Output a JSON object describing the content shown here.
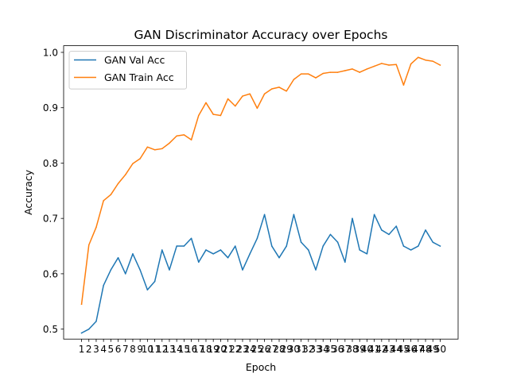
{
  "chart_data": {
    "type": "line",
    "title": "GAN Discriminator Accuracy over Epochs",
    "xlabel": "Epoch",
    "ylabel": "Accuracy",
    "x": [
      1,
      2,
      3,
      4,
      5,
      6,
      7,
      8,
      9,
      10,
      11,
      12,
      13,
      14,
      15,
      16,
      17,
      18,
      19,
      20,
      21,
      22,
      23,
      24,
      25,
      26,
      27,
      28,
      29,
      30,
      31,
      32,
      33,
      34,
      35,
      36,
      37,
      38,
      39,
      40,
      41,
      42,
      43,
      44,
      45,
      46,
      47,
      48,
      49,
      50
    ],
    "xlim": [
      -1.45,
      52.45
    ],
    "ylim": [
      0.482,
      1.012
    ],
    "yticks": [
      0.5,
      0.6,
      0.7,
      0.8,
      0.9,
      1.0
    ],
    "ytick_labels": [
      "0.5",
      "0.6",
      "0.7",
      "0.8",
      "0.9",
      "1.0"
    ],
    "legend_position": "upper-left",
    "grid": false,
    "series": [
      {
        "name": "GAN Val Acc",
        "color": "#1f77b4",
        "values": [
          0.493,
          0.5,
          0.514,
          0.579,
          0.607,
          0.629,
          0.6,
          0.636,
          0.607,
          0.571,
          0.586,
          0.643,
          0.607,
          0.65,
          0.65,
          0.664,
          0.621,
          0.643,
          0.636,
          0.643,
          0.629,
          0.65,
          0.607,
          0.636,
          0.664,
          0.707,
          0.65,
          0.629,
          0.65,
          0.707,
          0.657,
          0.643,
          0.607,
          0.65,
          0.671,
          0.657,
          0.621,
          0.7,
          0.643,
          0.636,
          0.707,
          0.679,
          0.671,
          0.686,
          0.65,
          0.643,
          0.65,
          0.679,
          0.657,
          0.65
        ]
      },
      {
        "name": "GAN Train Acc",
        "color": "#ff7f0e",
        "values": [
          0.545,
          0.652,
          0.684,
          0.732,
          0.743,
          0.763,
          0.779,
          0.799,
          0.808,
          0.829,
          0.824,
          0.826,
          0.836,
          0.849,
          0.851,
          0.842,
          0.886,
          0.909,
          0.888,
          0.886,
          0.916,
          0.903,
          0.921,
          0.925,
          0.899,
          0.925,
          0.934,
          0.937,
          0.93,
          0.951,
          0.961,
          0.961,
          0.954,
          0.962,
          0.964,
          0.964,
          0.967,
          0.97,
          0.964,
          0.97,
          0.975,
          0.98,
          0.977,
          0.978,
          0.941,
          0.979,
          0.991,
          0.986,
          0.984,
          0.977
        ]
      }
    ]
  }
}
